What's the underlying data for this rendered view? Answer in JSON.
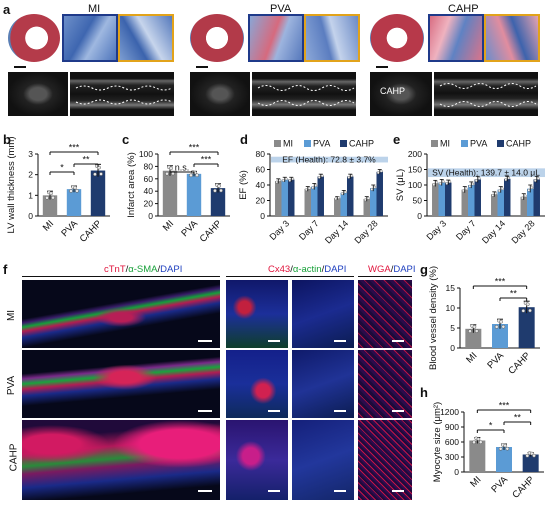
{
  "panels": {
    "a": "a",
    "b": "b",
    "c": "c",
    "d": "d",
    "e": "e",
    "f": "f",
    "g": "g",
    "h": "h"
  },
  "groups": [
    "MI",
    "PVA",
    "CAHP"
  ],
  "colors": {
    "MI": "#8a8a8a",
    "PVA": "#5b9bd5",
    "CAHP": "#1f3b6e",
    "ef_band": "#bcd3ea"
  },
  "panel_a": {
    "titles": [
      "MI",
      "PVA",
      "CAHP"
    ],
    "annotation": "CAHP"
  },
  "panel_f": {
    "stain1": {
      "red": "cTnT",
      "sep1": "/",
      "green": "α-SMA",
      "sep2": "/",
      "blue": "DAPI"
    },
    "stain2": {
      "red": "Cx43",
      "sep1": "/",
      "green": "α-actin",
      "sep2": "/",
      "blue": "DAPI"
    },
    "stain3": {
      "red": "WGA",
      "sep": "/",
      "blue": "DAPI"
    },
    "rows": [
      "MI",
      "PVA",
      "CAHP"
    ]
  },
  "chart_data": [
    {
      "panel": "b",
      "type": "bar",
      "categories": [
        "MI",
        "PVA",
        "CAHP"
      ],
      "values": [
        1.0,
        1.3,
        2.2
      ],
      "errors": [
        0.2,
        0.15,
        0.3
      ],
      "ylabel": "LV wall thickness (mm)",
      "ylim": [
        0,
        3
      ],
      "yticks": [
        "0",
        "1",
        "2",
        "3"
      ],
      "significance": [
        {
          "from": "MI",
          "to": "PVA",
          "label": "*"
        },
        {
          "from": "PVA",
          "to": "CAHP",
          "label": "**"
        },
        {
          "from": "MI",
          "to": "CAHP",
          "label": "***"
        }
      ]
    },
    {
      "panel": "c",
      "type": "bar",
      "categories": [
        "MI",
        "PVA",
        "CAHP"
      ],
      "values": [
        73,
        68,
        45
      ],
      "errors": [
        8,
        4,
        7
      ],
      "ylabel": "Infarct area (%)",
      "ylim": [
        0,
        100
      ],
      "yticks": [
        "0",
        "20",
        "40",
        "60",
        "80",
        "100"
      ],
      "significance": [
        {
          "from": "MI",
          "to": "PVA",
          "label": "n.s."
        },
        {
          "from": "PVA",
          "to": "CAHP",
          "label": "***"
        },
        {
          "from": "MI",
          "to": "CAHP",
          "label": "***"
        }
      ]
    },
    {
      "panel": "d",
      "type": "bar",
      "categories": [
        "Day 3",
        "Day 7",
        "Day 14",
        "Day 28"
      ],
      "series": [
        {
          "name": "MI",
          "values": [
            45,
            35,
            23,
            22
          ],
          "errors": [
            3,
            3,
            2,
            3
          ]
        },
        {
          "name": "PVA",
          "values": [
            47,
            38,
            30,
            36
          ],
          "errors": [
            3,
            4,
            3,
            4
          ]
        },
        {
          "name": "CAHP",
          "values": [
            47,
            51,
            51,
            57
          ],
          "errors": [
            3,
            3,
            3,
            3
          ]
        }
      ],
      "ylabel": "EF (%)",
      "ylim": [
        0,
        80
      ],
      "yticks": [
        "0",
        "20",
        "40",
        "60",
        "80"
      ],
      "band": {
        "label": "EF (Health): 72.8 ± 3.7%",
        "low": 69.1,
        "high": 76.5
      },
      "legend": "top"
    },
    {
      "panel": "e",
      "type": "bar",
      "categories": [
        "Day 3",
        "Day 7",
        "Day 14",
        "Day 28"
      ],
      "series": [
        {
          "name": "MI",
          "values": [
            105,
            85,
            70,
            62
          ],
          "errors": [
            10,
            10,
            8,
            10
          ]
        },
        {
          "name": "PVA",
          "values": [
            108,
            100,
            85,
            88
          ],
          "errors": [
            10,
            10,
            10,
            12
          ]
        },
        {
          "name": "CAHP",
          "values": [
            108,
            118,
            120,
            118
          ],
          "errors": [
            8,
            10,
            8,
            10
          ]
        }
      ],
      "ylabel": "SV (μL)",
      "ylim": [
        0,
        200
      ],
      "yticks": [
        "0",
        "50",
        "100",
        "150",
        "200"
      ],
      "band": {
        "label": "SV (Health): 139.7 ± 14.0 μL",
        "low": 125.7,
        "high": 153.7
      },
      "legend": "top"
    },
    {
      "panel": "g",
      "type": "bar",
      "categories": [
        "MI",
        "PVA",
        "CAHP"
      ],
      "values": [
        4.8,
        6.0,
        10.2
      ],
      "errors": [
        1.0,
        1.2,
        1.5
      ],
      "ylabel": "Blood vessel density (%)",
      "ylim": [
        0,
        15
      ],
      "yticks": [
        "0",
        "5",
        "10",
        "15"
      ],
      "significance": [
        {
          "from": "PVA",
          "to": "CAHP",
          "label": "**"
        },
        {
          "from": "MI",
          "to": "CAHP",
          "label": "***"
        }
      ]
    },
    {
      "panel": "h",
      "type": "bar",
      "categories": [
        "MI",
        "PVA",
        "CAHP"
      ],
      "values": [
        630,
        500,
        350
      ],
      "errors": [
        60,
        60,
        40
      ],
      "ylabel": "Myocyte size (μm²)",
      "ylim": [
        0,
        1200
      ],
      "yticks": [
        "0",
        "300",
        "600",
        "900",
        "1200"
      ],
      "significance": [
        {
          "from": "MI",
          "to": "PVA",
          "label": "*"
        },
        {
          "from": "PVA",
          "to": "CAHP",
          "label": "**"
        },
        {
          "from": "MI",
          "to": "CAHP",
          "label": "***"
        }
      ]
    }
  ]
}
